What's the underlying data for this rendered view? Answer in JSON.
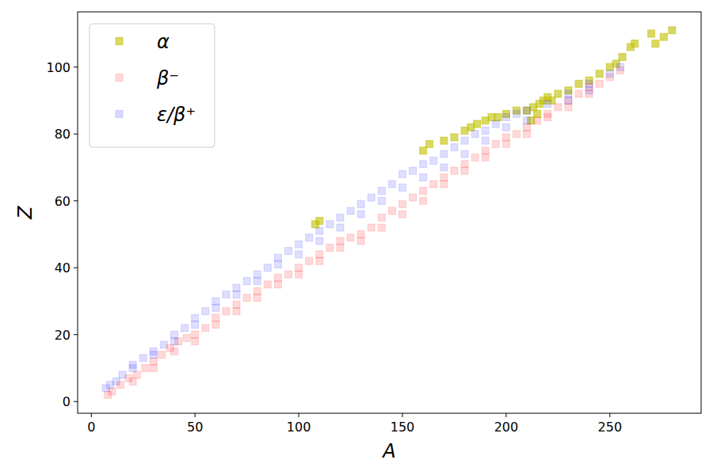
{
  "chart_data": {
    "type": "scatter",
    "x_label": "A",
    "y_label": "Z",
    "xlim": [
      -6.6,
      294
    ],
    "ylim": [
      -3.5,
      116.5
    ],
    "xticks": [
      0,
      50,
      100,
      150,
      200,
      250
    ],
    "yticks": [
      0,
      20,
      40,
      60,
      80,
      100
    ],
    "legend": "upper left",
    "marker": "square",
    "grid": false,
    "series": [
      {
        "name": "α",
        "color": "#bfbf00",
        "x": [
          108,
          110,
          160,
          163,
          170,
          175,
          180,
          183,
          186,
          190,
          193,
          196,
          200,
          205,
          210,
          212,
          213,
          215,
          216,
          218,
          220,
          222,
          225,
          230,
          235,
          240,
          245,
          250,
          253,
          256,
          260,
          262,
          270,
          272,
          276,
          280
        ],
        "values": [
          53,
          54,
          75,
          77,
          78,
          79,
          81,
          82,
          83,
          84,
          85,
          85,
          86,
          87,
          87,
          84,
          88,
          86,
          89,
          90,
          91,
          90,
          92,
          93,
          95,
          96,
          98,
          100,
          101,
          103,
          106,
          107,
          110,
          107,
          109,
          111
        ]
      },
      {
        "name": "β⁻",
        "color": "#ff0000",
        "x": [
          8,
          10,
          14,
          18,
          22,
          26,
          30,
          34,
          38,
          42,
          46,
          50,
          55,
          60,
          65,
          70,
          75,
          80,
          85,
          90,
          95,
          100,
          105,
          110,
          115,
          120,
          125,
          130,
          135,
          140,
          145,
          150,
          155,
          160,
          165,
          170,
          175,
          180,
          185,
          190,
          195,
          200,
          205,
          210,
          215,
          220,
          225,
          230,
          235,
          240,
          245,
          250,
          255,
          20,
          30,
          40,
          50,
          60,
          70,
          80,
          90,
          100,
          110,
          120,
          130,
          140,
          150,
          160,
          170,
          180,
          190,
          200,
          210,
          220,
          230,
          240
        ],
        "values": [
          2,
          3,
          5,
          7,
          8,
          10,
          12,
          14,
          16,
          18,
          19,
          20,
          22,
          25,
          27,
          29,
          31,
          33,
          35,
          37,
          38,
          40,
          42,
          44,
          46,
          48,
          49,
          50,
          52,
          55,
          57,
          59,
          61,
          63,
          65,
          67,
          69,
          71,
          73,
          75,
          77,
          79,
          80,
          82,
          84,
          86,
          88,
          90,
          92,
          94,
          95,
          97,
          99,
          6,
          10,
          15,
          18,
          23,
          27,
          31,
          35,
          38,
          42,
          46,
          48,
          52,
          56,
          60,
          65,
          69,
          73,
          77,
          80,
          85,
          88,
          92
        ]
      },
      {
        "name": "ε/β⁺",
        "color": "#0000ff",
        "x": [
          7,
          9,
          12,
          15,
          20,
          25,
          30,
          35,
          40,
          45,
          50,
          55,
          60,
          65,
          70,
          75,
          80,
          85,
          90,
          95,
          100,
          105,
          110,
          115,
          120,
          125,
          130,
          135,
          140,
          145,
          150,
          155,
          160,
          165,
          170,
          175,
          180,
          185,
          190,
          195,
          200,
          205,
          210,
          220,
          230,
          240,
          250,
          255,
          20,
          30,
          40,
          50,
          60,
          70,
          80,
          90,
          100,
          110,
          120,
          130,
          140,
          150,
          160,
          170,
          180,
          190,
          200,
          210,
          230,
          240
        ],
        "values": [
          4,
          5,
          6,
          8,
          11,
          13,
          15,
          17,
          20,
          22,
          25,
          27,
          30,
          32,
          34,
          36,
          38,
          40,
          43,
          45,
          47,
          49,
          51,
          53,
          55,
          57,
          59,
          61,
          63,
          65,
          68,
          69,
          71,
          72,
          74,
          76,
          78,
          80,
          81,
          83,
          85,
          86,
          87,
          89,
          92,
          95,
          98,
          100,
          10,
          14,
          18,
          23,
          28,
          32,
          36,
          41,
          44,
          48,
          52,
          56,
          60,
          64,
          67,
          70,
          74,
          78,
          82,
          84,
          90,
          93
        ]
      }
    ]
  }
}
